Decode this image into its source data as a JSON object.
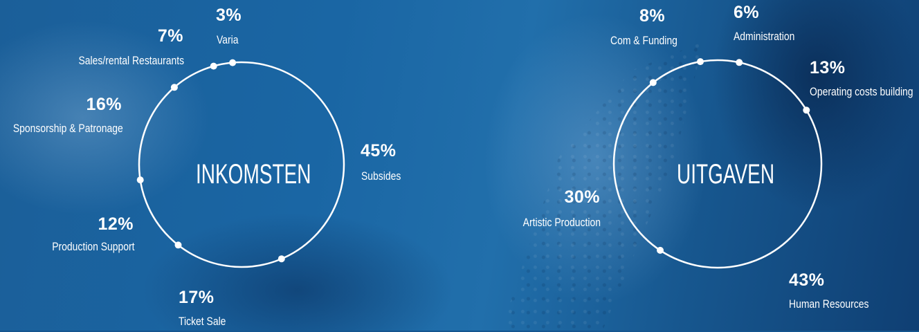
{
  "chart_data": [
    {
      "type": "pie",
      "title": "INKOMSTEN",
      "slices": [
        {
          "label": "Subsides",
          "value": 45,
          "value_label": "45%"
        },
        {
          "label": "Ticket Sale",
          "value": 17,
          "value_label": "17%"
        },
        {
          "label": "Production Support",
          "value": 12,
          "value_label": "12%"
        },
        {
          "label": "Sponsorship & Patronage",
          "value": 16,
          "value_label": "16%"
        },
        {
          "label": "Sales/rental Restaurants",
          "value": 7,
          "value_label": "7%"
        },
        {
          "label": "Varia",
          "value": 3,
          "value_label": "3%"
        }
      ]
    },
    {
      "type": "pie",
      "title": "UITGAVEN",
      "slices": [
        {
          "label": "Operating costs building",
          "value": 13,
          "value_label": "13%"
        },
        {
          "label": "Human Resources",
          "value": 43,
          "value_label": "43%"
        },
        {
          "label": "Artistic Production",
          "value": 30,
          "value_label": "30%"
        },
        {
          "label": "Com & Funding",
          "value": 8,
          "value_label": "8%"
        },
        {
          "label": "Administration",
          "value": 6,
          "value_label": "6%"
        }
      ]
    }
  ],
  "colors": {
    "ring": "#ffffff",
    "background": "#14558f"
  }
}
